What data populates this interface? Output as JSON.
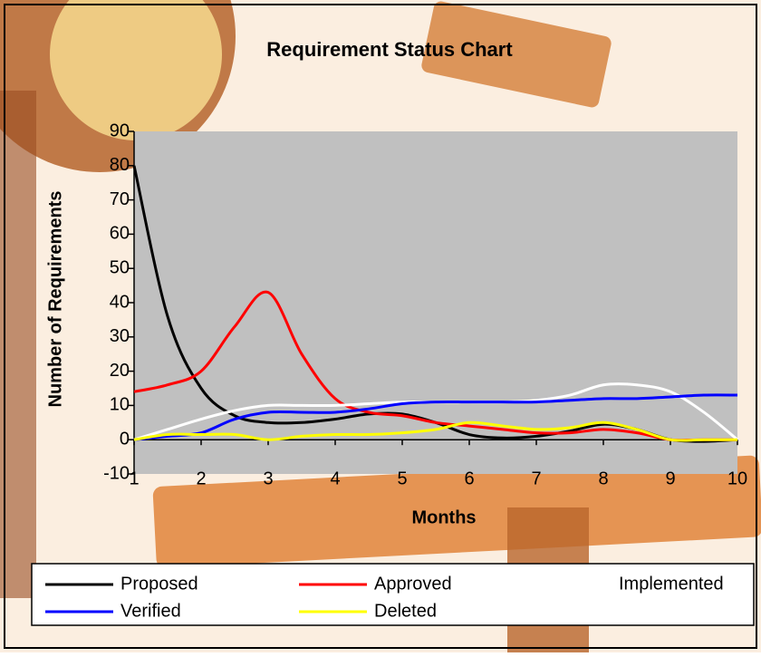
{
  "chart_data": {
    "type": "line",
    "title": "Requirement Status Chart",
    "x_label": "Months",
    "y_label": "Number of Requirements",
    "x": [
      1,
      1.5,
      2,
      2.5,
      3,
      3.5,
      4,
      4.5,
      5,
      5.5,
      6,
      6.5,
      7,
      7.5,
      8,
      8.5,
      9,
      9.5,
      10
    ],
    "series": [
      {
        "name": "Proposed",
        "color": "#000000",
        "values": [
          80,
          36,
          15,
          7,
          5,
          5,
          6,
          7.5,
          7.5,
          5,
          1.5,
          0.5,
          1,
          2.5,
          4.5,
          3,
          0,
          -0.5,
          0
        ]
      },
      {
        "name": "Approved",
        "color": "#ff0000",
        "values": [
          14,
          16,
          20,
          33,
          43,
          25,
          12,
          8,
          7,
          5,
          4,
          3,
          2,
          2,
          3,
          2,
          0,
          0,
          0
        ]
      },
      {
        "name": "Implemented",
        "color": "#ffffff",
        "values": [
          0,
          3,
          6,
          8.5,
          10,
          10,
          10,
          10.5,
          11,
          11,
          11,
          11,
          11.5,
          13,
          16,
          16,
          14,
          8,
          0
        ]
      },
      {
        "name": "Verified",
        "color": "#0000ff",
        "values": [
          0,
          1,
          2,
          6,
          8,
          8,
          8,
          9,
          10.5,
          11,
          11,
          11,
          11,
          11.5,
          12,
          12,
          12.5,
          13,
          13
        ]
      },
      {
        "name": "Deleted",
        "color": "#ffff00",
        "values": [
          0,
          1.5,
          1.5,
          1.5,
          0,
          1,
          1.5,
          1.5,
          2,
          3,
          5,
          4,
          3,
          3.5,
          5,
          3,
          0,
          0,
          0
        ]
      }
    ],
    "xlim": [
      1,
      10
    ],
    "xticks": [
      1,
      2,
      3,
      4,
      5,
      6,
      7,
      8,
      9,
      10
    ],
    "ylim": [
      -10,
      90
    ],
    "yticks": [
      -10,
      0,
      10,
      20,
      30,
      40,
      50,
      60,
      70,
      80,
      90
    ],
    "grid": false,
    "legend": "bottom"
  }
}
